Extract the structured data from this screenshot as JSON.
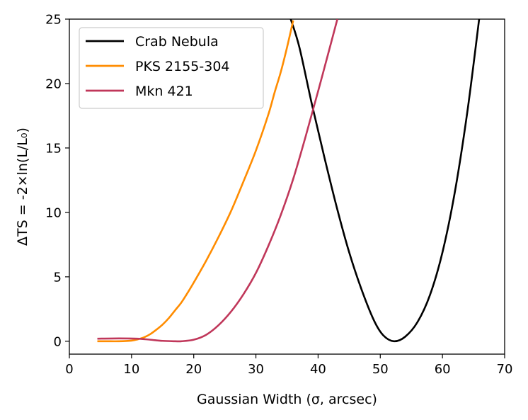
{
  "chart_data": {
    "type": "line",
    "xlabel": "Gaussian Width (σ, arcsec)",
    "ylabel": "ΔTS = -2×ln(L/L₀)",
    "xlim": [
      0,
      70
    ],
    "ylim": [
      -1,
      25
    ],
    "xticks": [
      0,
      10,
      20,
      30,
      40,
      50,
      60,
      70
    ],
    "yticks": [
      0,
      5,
      10,
      15,
      20,
      25
    ],
    "grid": false,
    "legend_position": "top-left",
    "series": [
      {
        "name": "Crab Nebula",
        "color": "#000000",
        "x": [
          35.6,
          37,
          39,
          41,
          43,
          45,
          47,
          49,
          50.5,
          52.2,
          54,
          56,
          58,
          60,
          62,
          64,
          65.9
        ],
        "y": [
          25,
          22.8,
          18.4,
          14.3,
          10.4,
          6.9,
          4.0,
          1.6,
          0.45,
          0.0,
          0.35,
          1.5,
          3.6,
          6.9,
          11.6,
          17.8,
          25
        ]
      },
      {
        "name": "PKS 2155-304",
        "color": "#ff8c00",
        "x": [
          4.5,
          6,
          8,
          10,
          11,
          12,
          13,
          14,
          15,
          16,
          17,
          18,
          19,
          20,
          22,
          24,
          26,
          28,
          30,
          32,
          33,
          34,
          35,
          36
        ],
        "y": [
          0.0,
          0.0,
          0.0,
          0.05,
          0.15,
          0.3,
          0.55,
          0.9,
          1.3,
          1.8,
          2.4,
          3.0,
          3.75,
          4.55,
          6.25,
          8.1,
          10.1,
          12.4,
          14.8,
          17.6,
          19.3,
          20.9,
          22.8,
          24.9
        ]
      },
      {
        "name": "Mkn 421",
        "color": "#c0375a",
        "x": [
          4.5,
          8,
          11,
          13,
          15,
          17,
          18,
          20,
          22,
          24,
          26,
          28,
          30,
          32,
          34,
          36,
          38,
          40,
          42,
          43.1
        ],
        "y": [
          0.2,
          0.22,
          0.2,
          0.12,
          0.03,
          0.0,
          0.0,
          0.12,
          0.5,
          1.25,
          2.3,
          3.65,
          5.3,
          7.4,
          9.8,
          12.6,
          15.9,
          19.4,
          23.0,
          25
        ]
      }
    ]
  }
}
